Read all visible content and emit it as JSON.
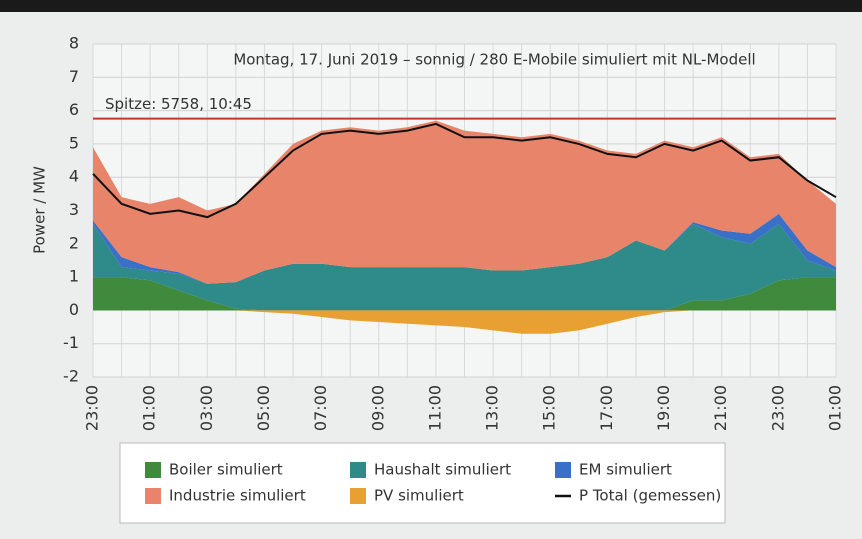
{
  "chart_data": {
    "type": "area",
    "title": "Montag, 17. Juni 2019 – sonnig / 280 E-Mobile simuliert mit NL-Modell",
    "y_label": "Power / MW",
    "categories": [
      "23:00",
      null,
      "01:00",
      null,
      "03:00",
      null,
      "05:00",
      null,
      "07:00",
      null,
      "09:00",
      null,
      "11:00",
      null,
      "13:00",
      null,
      "15:00",
      null,
      "17:00",
      null,
      "19:00",
      null,
      "21:00",
      null,
      "23:00",
      null,
      "01:00"
    ],
    "series": [
      {
        "name": "Boiler simuliert",
        "color": "#3f8a3c",
        "values": [
          1.0,
          1.0,
          0.9,
          0.6,
          0.3,
          0.05,
          0,
          0,
          0,
          0,
          0,
          0,
          0,
          0,
          0,
          0,
          0,
          0,
          0,
          0,
          0,
          0.3,
          0.3,
          0.5,
          0.9,
          1.0,
          1.0
        ]
      },
      {
        "name": "Industrie simuliert",
        "color": "#e8846a",
        "values": [
          2.2,
          1.8,
          1.9,
          2.25,
          2.2,
          2.35,
          2.9,
          3.6,
          4.0,
          4.2,
          4.1,
          4.2,
          4.4,
          4.1,
          4.1,
          4.0,
          4.0,
          3.7,
          3.2,
          2.6,
          3.3,
          2.25,
          2.8,
          2.3,
          1.8,
          2.1,
          1.9
        ]
      },
      {
        "name": "Haushalt simuliert",
        "color": "#2f8a8a",
        "values": [
          1.6,
          0.3,
          0.3,
          0.5,
          0.5,
          0.8,
          1.2,
          1.4,
          1.4,
          1.3,
          1.3,
          1.3,
          1.3,
          1.3,
          1.2,
          1.2,
          1.3,
          1.4,
          1.6,
          2.1,
          1.8,
          2.3,
          1.9,
          1.5,
          1.7,
          0.5,
          0.2
        ]
      },
      {
        "name": "PV simuliert",
        "color": "#e8a033",
        "values": [
          0,
          0,
          0,
          0,
          0,
          0,
          -0.05,
          -0.1,
          -0.2,
          -0.3,
          -0.35,
          -0.4,
          -0.45,
          -0.5,
          -0.6,
          -0.7,
          -0.7,
          -0.6,
          -0.4,
          -0.2,
          -0.05,
          0,
          0,
          0,
          0,
          0,
          0
        ]
      },
      {
        "name": "EM simuliert",
        "color": "#3a70c8",
        "values": [
          0.1,
          0.3,
          0.1,
          0.05,
          0,
          0,
          0,
          0,
          0,
          0,
          0,
          0,
          0,
          0,
          0,
          0,
          0,
          0,
          0,
          0,
          0,
          0.05,
          0.2,
          0.3,
          0.3,
          0.3,
          0.1
        ]
      },
      {
        "name": "P Total (gemessen)",
        "color": "#111111",
        "line": true,
        "values": [
          4.1,
          3.2,
          2.9,
          3.0,
          2.8,
          3.2,
          4.0,
          4.8,
          5.3,
          5.4,
          5.3,
          5.4,
          5.6,
          5.2,
          5.2,
          5.1,
          5.2,
          5.0,
          4.7,
          4.6,
          5.0,
          4.8,
          5.1,
          4.5,
          4.6,
          3.9,
          3.4
        ]
      }
    ],
    "peak": {
      "text": "Spitze: 5758, 10:45",
      "value": 5.758,
      "color": "#c0392b"
    },
    "ylim": [
      -2,
      8
    ],
    "yticks": [
      -2,
      -1,
      0,
      1,
      2,
      3,
      4,
      5,
      6,
      7,
      8
    ],
    "grid": true
  }
}
